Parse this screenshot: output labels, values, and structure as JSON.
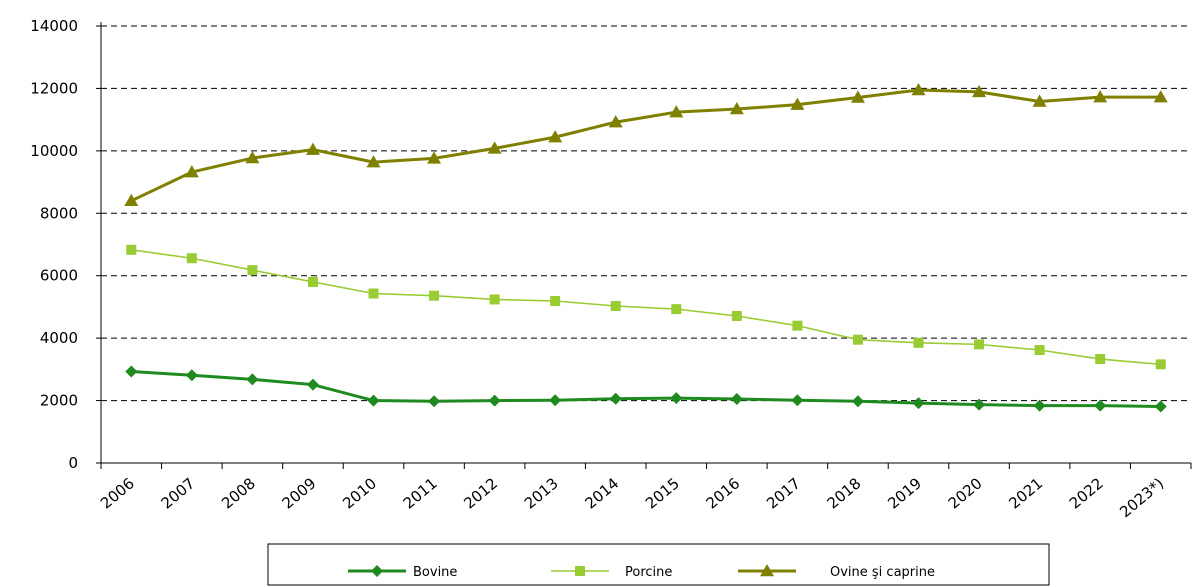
{
  "chart_data": {
    "type": "line",
    "title": "",
    "xlabel": "",
    "ylabel": "",
    "categories": [
      "2006",
      "2007",
      "2008",
      "2009",
      "2010",
      "2011",
      "2012",
      "2013",
      "2014",
      "2015",
      "2016",
      "2017",
      "2018",
      "2019",
      "2020",
      "2021",
      "2022",
      "2023*)"
    ],
    "ylim": [
      0,
      14000
    ],
    "yticks": [
      0,
      2000,
      4000,
      6000,
      8000,
      10000,
      12000,
      14000
    ],
    "grid": "horizontal-dashed",
    "legend_position": "bottom",
    "series": [
      {
        "name": "Bovine",
        "color": "#1f8a1f",
        "marker": "diamond",
        "values": [
          2930,
          2810,
          2680,
          2510,
          2000,
          1980,
          2000,
          2010,
          2060,
          2080,
          2050,
          2010,
          1980,
          1920,
          1870,
          1840,
          1840,
          1810
        ]
      },
      {
        "name": "Porcine",
        "color": "#99cc33",
        "marker": "square",
        "values": [
          6830,
          6560,
          6180,
          5800,
          5430,
          5360,
          5240,
          5190,
          5030,
          4930,
          4710,
          4400,
          3950,
          3850,
          3800,
          3620,
          3330,
          3160
        ]
      },
      {
        "name": "Ovine şi caprine",
        "color": "#7f7f00",
        "marker": "triangle",
        "values": [
          8400,
          9320,
          9770,
          10040,
          9640,
          9760,
          10080,
          10440,
          10920,
          11240,
          11340,
          11480,
          11710,
          11950,
          11890,
          11580,
          11720,
          11720
        ]
      }
    ]
  }
}
